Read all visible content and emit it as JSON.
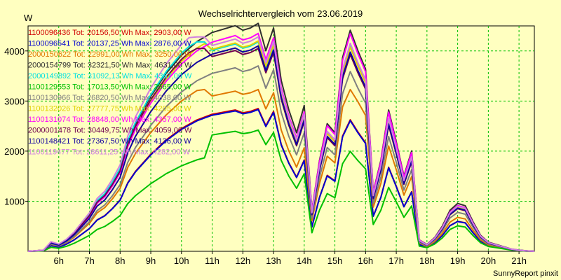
{
  "chart_data": {
    "type": "line",
    "title": "Wechselrichtervergleich vom 23.06.2019",
    "ylabel": "W",
    "credit": "SunnyReport pinxit",
    "ylim": [
      0,
      4500
    ],
    "xlim": [
      5.0,
      21.5
    ],
    "grid": true,
    "legend_placement": "top-left",
    "x_ticks": [
      {
        "x": 6,
        "label": "6h"
      },
      {
        "x": 7,
        "label": "7h"
      },
      {
        "x": 8,
        "label": "8h"
      },
      {
        "x": 9,
        "label": "9h"
      },
      {
        "x": 10,
        "label": "10h"
      },
      {
        "x": 11,
        "label": "11h"
      },
      {
        "x": 12,
        "label": "12h"
      },
      {
        "x": 13,
        "label": "13h"
      },
      {
        "x": 14,
        "label": "14h"
      },
      {
        "x": 15,
        "label": "15h"
      },
      {
        "x": 16,
        "label": "16h"
      },
      {
        "x": 17,
        "label": "17h"
      },
      {
        "x": 18,
        "label": "18h"
      },
      {
        "x": 19,
        "label": "19h"
      },
      {
        "x": 20,
        "label": "20h"
      },
      {
        "x": 21,
        "label": "21h"
      }
    ],
    "y_ticks": [
      {
        "y": 1000,
        "label": "1000"
      },
      {
        "y": 2000,
        "label": "2000"
      },
      {
        "y": 3000,
        "label": "3000"
      },
      {
        "y": 4000,
        "label": "4000"
      }
    ],
    "x": [
      5.0,
      5.5,
      5.75,
      6.0,
      6.25,
      6.5,
      6.75,
      7.0,
      7.25,
      7.5,
      7.75,
      8.0,
      8.25,
      8.5,
      8.75,
      9.0,
      9.25,
      9.5,
      9.75,
      10.0,
      10.25,
      10.5,
      10.75,
      11.0,
      11.25,
      11.5,
      11.75,
      12.0,
      12.25,
      12.5,
      12.75,
      13.0,
      13.25,
      13.5,
      13.75,
      14.0,
      14.25,
      14.5,
      14.75,
      15.0,
      15.25,
      15.5,
      15.75,
      16.0,
      16.25,
      16.5,
      16.75,
      17.0,
      17.25,
      17.5,
      17.75,
      18.0,
      18.25,
      18.5,
      18.75,
      19.0,
      19.25,
      19.5,
      19.75,
      20.0,
      20.25,
      20.5,
      20.75,
      21.0,
      21.25,
      21.5
    ],
    "shape": [
      0,
      0.005,
      0.04,
      0.03,
      0.05,
      0.08,
      0.12,
      0.16,
      0.22,
      0.25,
      0.3,
      0.36,
      0.48,
      0.56,
      0.62,
      0.68,
      0.73,
      0.78,
      0.82,
      0.86,
      0.89,
      0.92,
      0.94,
      0.96,
      0.97,
      0.98,
      0.99,
      0.97,
      0.98,
      1.0,
      0.88,
      0.98,
      0.75,
      0.62,
      0.52,
      0.64,
      0.18,
      0.4,
      0.56,
      0.52,
      0.85,
      0.97,
      0.88,
      0.8,
      0.26,
      0.4,
      0.62,
      0.48,
      0.33,
      0.44,
      0.05,
      0.03,
      0.06,
      0.11,
      0.18,
      0.21,
      0.2,
      0.13,
      0.07,
      0.04,
      0.03,
      0.02,
      0.01,
      0.005,
      0.002,
      0
    ],
    "series": [
      {
        "name": "1100096436",
        "tot": "20156,50",
        "max": "2903,00",
        "color": "#d00000",
        "peak": 2850,
        "lead": 1.0,
        "hi": 0.95
      },
      {
        "name": "1100096541",
        "tot": "20137,25",
        "max": "2876,00",
        "color": "#0000d0",
        "peak": 2830,
        "lead": 1.0,
        "hi": 0.95
      },
      {
        "name": "2000150622",
        "tot": "22991,00",
        "max": "3250,00",
        "color": "#e07800",
        "peak": 3230,
        "lead": 1.08,
        "hi": 1.05
      },
      {
        "name": "2000154799",
        "tot": "32321,50",
        "max": "4631,00",
        "color": "#303030",
        "peak": 4550,
        "lead": 1.0,
        "hi": 1.0
      },
      {
        "name": "2000149892",
        "tot": "31092,13",
        "max": "4367,00",
        "color": "#00e0e0",
        "peak": 4180,
        "lead": 1.1,
        "hi": 1.02
      },
      {
        "name": "1100129553",
        "tot": "17013,50",
        "max": "2565,00",
        "color": "#00c000",
        "peak": 2420,
        "lead": 0.82,
        "hi": 0.85
      },
      {
        "name": "1100130966",
        "tot": "26820,50",
        "max": "4038,00",
        "color": "#808080",
        "peak": 3700,
        "lead": 1.0,
        "hi": 1.0
      },
      {
        "name": "1100132026",
        "tot": "27777,75",
        "max": "4205,00",
        "color": "#e0d000",
        "peak": 4200,
        "lead": 1.05,
        "hi": 1.0
      },
      {
        "name": "1100131074",
        "tot": "28848,00",
        "max": "4357,00",
        "color": "#ff00ff",
        "peak": 4350,
        "lead": 1.0,
        "hi": 1.03
      },
      {
        "name": "2000001478",
        "tot": "30449,75",
        "max": "4059,00",
        "color": "#700050",
        "peak": 4050,
        "lead": 1.1,
        "hi": 1.0
      },
      {
        "name": "1100148421",
        "tot": "27367,50",
        "max": "4136,00",
        "color": "#1000a0",
        "peak": 4100,
        "lead": 1.0,
        "hi": 1.0
      },
      {
        "name": "1100119477",
        "tot": "28611,25",
        "max": "4282,00",
        "color": "#d080e0",
        "peak": 4280,
        "lead": 1.12,
        "hi": 1.0
      }
    ],
    "legend_fmt": {
      "tot": "Tot:",
      "wh": "Wh Max:",
      "w": "W"
    }
  }
}
